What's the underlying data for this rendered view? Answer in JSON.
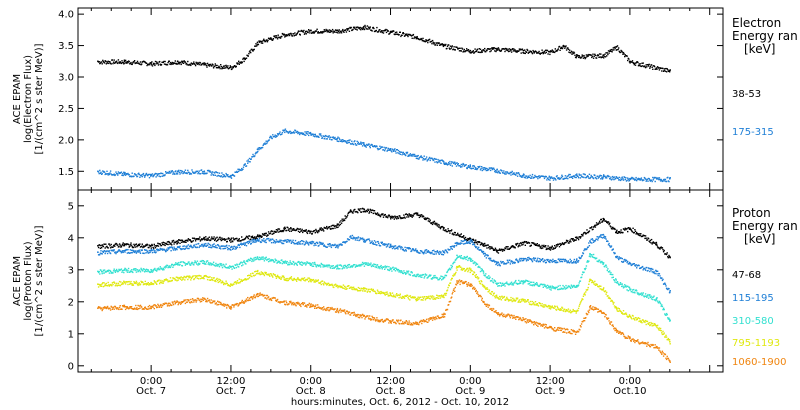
{
  "chart_data": [
    {
      "type": "scatter",
      "panel": "electron",
      "ylabel": [
        "ACE EPAM",
        "log(Electron Flux)",
        "[1/(cm^2 s ster MeV)]"
      ],
      "ylim": [
        1.25,
        4.05
      ],
      "yticks": [
        1.5,
        2.0,
        2.5,
        3.0,
        3.5,
        4.0
      ],
      "ytick_labels": [
        "1.5",
        "2.0",
        "2.5",
        "3.0",
        "3.5",
        "4.0"
      ],
      "legend_title": [
        "Electron",
        "Energy ran",
        "[keV]"
      ],
      "series": [
        {
          "name": "38-53",
          "color": "#000000",
          "x": [
            -8,
            -4,
            0,
            4,
            8,
            12,
            14,
            16,
            18,
            20,
            24,
            28,
            32,
            36,
            40,
            44,
            48,
            52,
            56,
            60,
            62,
            64,
            68,
            70,
            72,
            78
          ],
          "y": [
            3.25,
            3.25,
            3.22,
            3.25,
            3.2,
            3.16,
            3.3,
            3.55,
            3.62,
            3.68,
            3.74,
            3.74,
            3.8,
            3.72,
            3.64,
            3.5,
            3.42,
            3.45,
            3.42,
            3.4,
            3.5,
            3.33,
            3.35,
            3.48,
            3.25,
            3.1
          ]
        },
        {
          "name": "175-315",
          "color": "#1f7fd6",
          "x": [
            -8,
            -4,
            0,
            4,
            8,
            12,
            14,
            16,
            18,
            20,
            24,
            28,
            32,
            36,
            40,
            44,
            48,
            52,
            56,
            60,
            64,
            68,
            72,
            78
          ],
          "y": [
            1.5,
            1.46,
            1.44,
            1.5,
            1.5,
            1.43,
            1.6,
            1.85,
            2.05,
            2.15,
            2.1,
            2.02,
            1.93,
            1.85,
            1.74,
            1.65,
            1.58,
            1.52,
            1.44,
            1.4,
            1.44,
            1.42,
            1.38,
            1.38
          ]
        }
      ]
    },
    {
      "type": "scatter",
      "panel": "proton",
      "ylabel": [
        "ACE EPAM",
        "log(Proton Flux)",
        "[1/(cm^2 s ster MeV)]"
      ],
      "ylim": [
        -0.1,
        5.4
      ],
      "yticks": [
        0,
        1,
        2,
        3,
        4,
        5
      ],
      "ytick_labels": [
        "0",
        "1",
        "2",
        "3",
        "4",
        "5"
      ],
      "legend_title": [
        "Proton",
        "Energy ran",
        "[keV]"
      ],
      "series": [
        {
          "name": "47-68",
          "color": "#000000",
          "x": [
            -8,
            -4,
            0,
            4,
            8,
            12,
            16,
            20,
            24,
            28,
            30,
            32,
            36,
            40,
            44,
            48,
            50,
            52,
            56,
            60,
            64,
            68,
            70,
            72,
            76,
            78
          ],
          "y": [
            3.75,
            3.8,
            3.75,
            3.9,
            4.0,
            3.95,
            4.05,
            4.3,
            4.2,
            4.4,
            4.85,
            4.9,
            4.65,
            4.75,
            4.3,
            3.95,
            3.8,
            3.6,
            3.85,
            3.7,
            4.0,
            4.6,
            4.2,
            4.3,
            3.8,
            3.4
          ]
        },
        {
          "name": "115-195",
          "color": "#1f7fd6",
          "x": [
            -8,
            -4,
            0,
            4,
            8,
            12,
            16,
            20,
            24,
            28,
            30,
            32,
            36,
            40,
            44,
            46,
            48,
            50,
            52,
            56,
            60,
            64,
            66,
            68,
            70,
            72,
            76,
            78
          ],
          "y": [
            3.55,
            3.6,
            3.6,
            3.7,
            3.8,
            3.7,
            3.95,
            3.9,
            3.85,
            3.75,
            4.05,
            3.95,
            3.75,
            3.6,
            3.55,
            3.85,
            3.9,
            3.5,
            3.2,
            3.35,
            3.3,
            3.3,
            3.9,
            4.1,
            3.4,
            3.2,
            2.95,
            2.3
          ]
        },
        {
          "name": "310-580",
          "color": "#32e0d0",
          "x": [
            -8,
            -4,
            0,
            4,
            8,
            12,
            16,
            20,
            24,
            28,
            32,
            36,
            40,
            44,
            46,
            48,
            50,
            52,
            56,
            60,
            64,
            66,
            68,
            70,
            72,
            76,
            78
          ],
          "y": [
            2.95,
            3.0,
            3.0,
            3.2,
            3.25,
            3.1,
            3.4,
            3.25,
            3.2,
            3.1,
            3.2,
            3.05,
            2.85,
            2.75,
            3.45,
            3.35,
            2.9,
            2.55,
            2.65,
            2.45,
            2.5,
            3.5,
            3.2,
            2.6,
            2.4,
            2.1,
            1.4
          ]
        },
        {
          "name": "795-1193",
          "color": "#dfe810",
          "x": [
            -8,
            -4,
            0,
            4,
            8,
            12,
            16,
            20,
            24,
            28,
            32,
            36,
            40,
            44,
            46,
            48,
            50,
            52,
            56,
            60,
            64,
            66,
            68,
            70,
            72,
            76,
            78
          ],
          "y": [
            2.55,
            2.6,
            2.6,
            2.75,
            2.8,
            2.55,
            2.95,
            2.75,
            2.7,
            2.5,
            2.4,
            2.25,
            2.1,
            2.2,
            3.1,
            3.0,
            2.5,
            2.15,
            2.05,
            1.85,
            1.7,
            2.7,
            2.4,
            1.8,
            1.55,
            1.25,
            0.75
          ]
        },
        {
          "name": "1060-1900",
          "color": "#f0850f",
          "x": [
            -8,
            -4,
            0,
            4,
            8,
            12,
            16,
            20,
            24,
            28,
            32,
            36,
            40,
            44,
            46,
            48,
            50,
            52,
            56,
            60,
            64,
            66,
            68,
            70,
            72,
            76,
            78
          ],
          "y": [
            1.8,
            1.85,
            1.85,
            2.0,
            2.1,
            1.85,
            2.25,
            2.0,
            1.9,
            1.75,
            1.55,
            1.4,
            1.35,
            1.6,
            2.65,
            2.55,
            2.0,
            1.65,
            1.45,
            1.2,
            1.05,
            1.85,
            1.65,
            1.1,
            0.85,
            0.6,
            0.15
          ]
        }
      ]
    }
  ],
  "x_axis": {
    "xlim": [
      -11,
      86
    ],
    "ticks": [
      0,
      12,
      24,
      36,
      48,
      60,
      72,
      84
    ],
    "tick_labels_top": [
      "0:00",
      "12:00",
      "0:00",
      "12:00",
      "0:00",
      "12:00",
      "0:00"
    ],
    "tick_labels_bottom": [
      "Oct. 7",
      "Oct. 7",
      "Oct. 8",
      "Oct. 8",
      "Oct. 9",
      "Oct. 9",
      "Oct.10"
    ],
    "label_ticks": [
      0,
      12,
      24,
      36,
      48,
      60,
      72
    ],
    "xlabel": "hours:minutes, Oct.  6, 2012 - Oct. 10, 2012"
  }
}
